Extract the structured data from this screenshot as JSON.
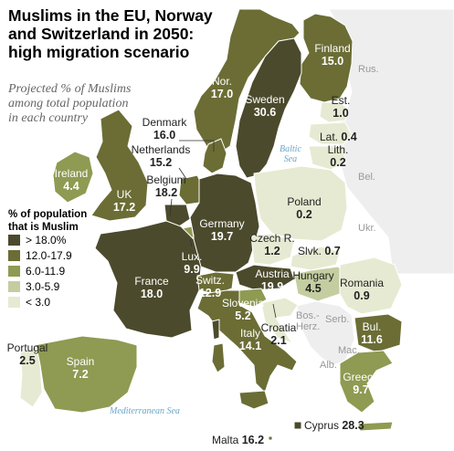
{
  "title": {
    "line1": "Muslims in the EU, Norway",
    "line2": "and Switzerland in 2050:",
    "line3": "high migration scenario"
  },
  "subtitle": {
    "line1": "Projected % of Muslims",
    "line2": "among total population",
    "line3": "in each country"
  },
  "legend": {
    "title_line1": "% of population",
    "title_line2": "that is Muslim",
    "items": [
      {
        "label": "> 18.0%",
        "color": "#4b4a2c"
      },
      {
        "label": "12.0-17.9",
        "color": "#6b6d35"
      },
      {
        "label": "6.0-11.9",
        "color": "#8f9a52"
      },
      {
        "label": "3.0-5.9",
        "color": "#c4cda0"
      },
      {
        "label": "< 3.0",
        "color": "#e6ead2"
      }
    ]
  },
  "countries": {
    "finland": {
      "name": "Finland",
      "value": "15.0"
    },
    "norway": {
      "name": "Nor.",
      "value": "17.0"
    },
    "sweden": {
      "name": "Sweden",
      "value": "30.6"
    },
    "estonia": {
      "name": "Est.",
      "value": "1.0"
    },
    "latvia": {
      "name": "Lat.",
      "value": "0.4"
    },
    "lithuania": {
      "name": "Lith.",
      "value": "0.2"
    },
    "denmark": {
      "name": "Denmark",
      "value": "16.0"
    },
    "netherlands": {
      "name": "Netherlands",
      "value": "15.2"
    },
    "ireland": {
      "name": "Ireland",
      "value": "4.4"
    },
    "uk": {
      "name": "UK",
      "value": "17.2"
    },
    "belgium": {
      "name": "Belgium",
      "value": "18.2"
    },
    "germany": {
      "name": "Germany",
      "value": "19.7"
    },
    "poland": {
      "name": "Poland",
      "value": "0.2"
    },
    "czech": {
      "name": "Czech R.",
      "value": "1.2"
    },
    "slovakia": {
      "name": "Slvk.",
      "value": "0.7"
    },
    "luxembourg": {
      "name": "Lux.",
      "value": "9.9"
    },
    "austria": {
      "name": "Austria",
      "value": "19.9"
    },
    "hungary": {
      "name": "Hungary",
      "value": "4.5"
    },
    "romania": {
      "name": "Romania",
      "value": "0.9"
    },
    "france": {
      "name": "France",
      "value": "18.0"
    },
    "switzerland": {
      "name": "Switz.",
      "value": "12.9"
    },
    "slovenia": {
      "name": "Slovenia",
      "value": "5.2"
    },
    "croatia": {
      "name": "Croatia",
      "value": "2.1"
    },
    "italy": {
      "name": "Italy",
      "value": "14.1"
    },
    "bulgaria": {
      "name": "Bul.",
      "value": "11.6"
    },
    "portugal": {
      "name": "Portugal",
      "value": "2.5"
    },
    "spain": {
      "name": "Spain",
      "value": "7.2"
    },
    "greece": {
      "name": "Greece",
      "value": "9.7"
    },
    "cyprus": {
      "name": "Cyprus",
      "value": "28.3"
    },
    "malta": {
      "name": "Malta",
      "value": "16.2"
    }
  },
  "other_labels": {
    "russia": "Rus.",
    "belarus": "Bel.",
    "ukraine": "Ukr.",
    "serbia": "Serb.",
    "bosnia_1": "Bos.-",
    "bosnia_2": "Herz.",
    "macedonia": "Mac.",
    "albania": "Alb."
  },
  "seas": {
    "baltic_1": "Baltic",
    "baltic_2": "Sea",
    "mediterranean": "Mediterranean Sea"
  },
  "colors": {
    "sea": "#ffffff",
    "non_eu_land": "#f0f0f0",
    "border": "#ffffff"
  }
}
